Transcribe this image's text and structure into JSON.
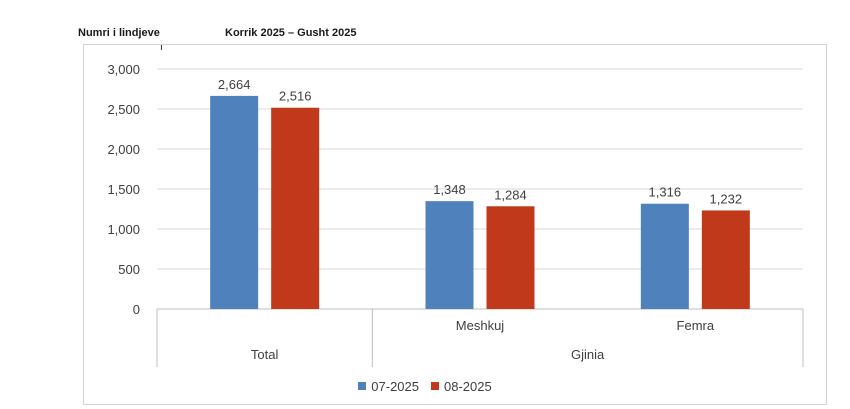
{
  "header": {
    "ylabel": "Numri i lindjeve",
    "period": "Korrik 2025 – Gusht 2025",
    "mark": "ı"
  },
  "chart_data": {
    "type": "bar",
    "title": "",
    "categories": [
      {
        "label": "Total",
        "group": ""
      },
      {
        "label": "Meshkuj",
        "group": "Gjinia"
      },
      {
        "label": "Femra",
        "group": "Gjinia"
      }
    ],
    "groups": [
      {
        "label": "Total"
      },
      {
        "label": "Gjinia"
      }
    ],
    "series": [
      {
        "name": "07-2025",
        "color": "#4f81bd",
        "values": [
          2664,
          1348,
          1316
        ],
        "labels": [
          "2,664",
          "1,348",
          "1,316"
        ]
      },
      {
        "name": "08-2025",
        "color": "#c0391b",
        "values": [
          2516,
          1284,
          1232
        ],
        "labels": [
          "2,516",
          "1,284",
          "1,232"
        ]
      }
    ],
    "ylim": [
      0,
      3000
    ],
    "yticks": [
      {
        "value": 0,
        "label": "0"
      },
      {
        "value": 500,
        "label": "500"
      },
      {
        "value": 1000,
        "label": "1,000"
      },
      {
        "value": 1500,
        "label": "1,500"
      },
      {
        "value": 2000,
        "label": "2,000"
      },
      {
        "value": 2500,
        "label": "2,500"
      },
      {
        "value": 3000,
        "label": "3,000"
      }
    ],
    "grid": true,
    "legend_position": "bottom"
  }
}
